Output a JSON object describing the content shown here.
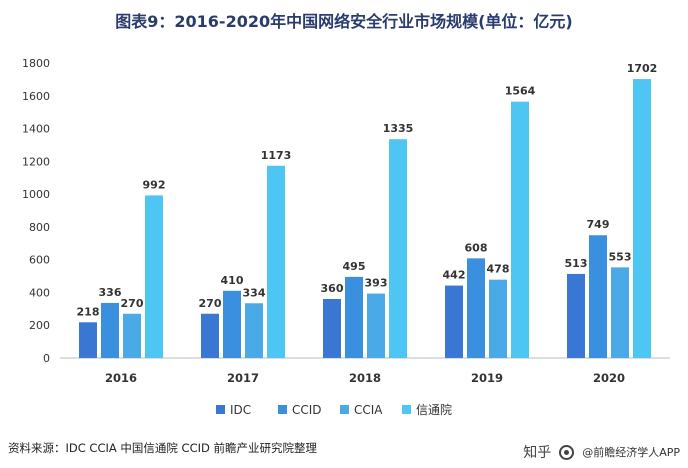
{
  "chart_data": {
    "type": "bar",
    "title": "图表9：2016-2020年中国网络安全行业市场规模(单位：亿元)",
    "categories": [
      "2016",
      "2017",
      "2018",
      "2019",
      "2020"
    ],
    "series": [
      {
        "name": "IDC",
        "color": "#3a77d3",
        "values": [
          218,
          270,
          360,
          442,
          513
        ]
      },
      {
        "name": "CCID",
        "color": "#3a8fdf",
        "values": [
          336,
          410,
          495,
          608,
          749
        ]
      },
      {
        "name": "CCIA",
        "color": "#4aaae8",
        "values": [
          270,
          334,
          393,
          478,
          553
        ]
      },
      {
        "name": "信通院",
        "color": "#4ec6f3",
        "values": [
          992,
          1173,
          1335,
          1564,
          1702
        ]
      }
    ],
    "ylim": [
      0,
      1800
    ],
    "yticks": [
      0,
      200,
      400,
      600,
      800,
      1000,
      1200,
      1400,
      1600,
      1800
    ],
    "grid": false,
    "legend": "bottom-center"
  },
  "source_text": "资料来源：IDC CCIA 中国信通院 CCID 前瞻产业研究院整理",
  "watermark": {
    "zhihu": "知乎",
    "account": "@前瞻经济学人APP"
  }
}
